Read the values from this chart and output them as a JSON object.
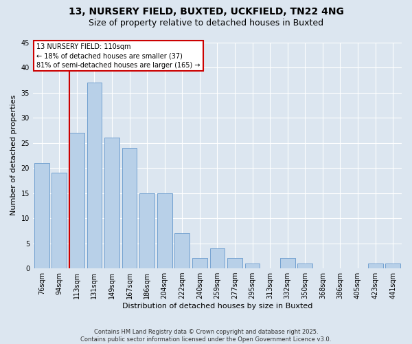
{
  "title_line1": "13, NURSERY FIELD, BUXTED, UCKFIELD, TN22 4NG",
  "title_line2": "Size of property relative to detached houses in Buxted",
  "xlabel": "Distribution of detached houses by size in Buxted",
  "ylabel": "Number of detached properties",
  "categories": [
    "76sqm",
    "94sqm",
    "113sqm",
    "131sqm",
    "149sqm",
    "167sqm",
    "186sqm",
    "204sqm",
    "222sqm",
    "240sqm",
    "259sqm",
    "277sqm",
    "295sqm",
    "313sqm",
    "332sqm",
    "350sqm",
    "368sqm",
    "386sqm",
    "405sqm",
    "423sqm",
    "441sqm"
  ],
  "values": [
    21,
    19,
    27,
    37,
    26,
    24,
    15,
    15,
    7,
    2,
    4,
    2,
    1,
    0,
    2,
    1,
    0,
    0,
    0,
    1,
    1
  ],
  "bar_color": "#b8d0e8",
  "bar_edge_color": "#6699cc",
  "vline_x_index": 2.0,
  "annotation_text": "13 NURSERY FIELD: 110sqm\n← 18% of detached houses are smaller (37)\n81% of semi-detached houses are larger (165) →",
  "annotation_box_color": "#ffffff",
  "annotation_box_edge_color": "#cc0000",
  "vline_color": "#cc0000",
  "ylim": [
    0,
    45
  ],
  "yticks": [
    0,
    5,
    10,
    15,
    20,
    25,
    30,
    35,
    40,
    45
  ],
  "bg_color": "#dce6f0",
  "plot_bg_color": "#dce6f0",
  "footer_text": "Contains HM Land Registry data © Crown copyright and database right 2025.\nContains public sector information licensed under the Open Government Licence v3.0.",
  "title_fontsize": 10,
  "subtitle_fontsize": 9,
  "tick_fontsize": 7,
  "ylabel_fontsize": 8,
  "xlabel_fontsize": 8,
  "annot_fontsize": 7
}
